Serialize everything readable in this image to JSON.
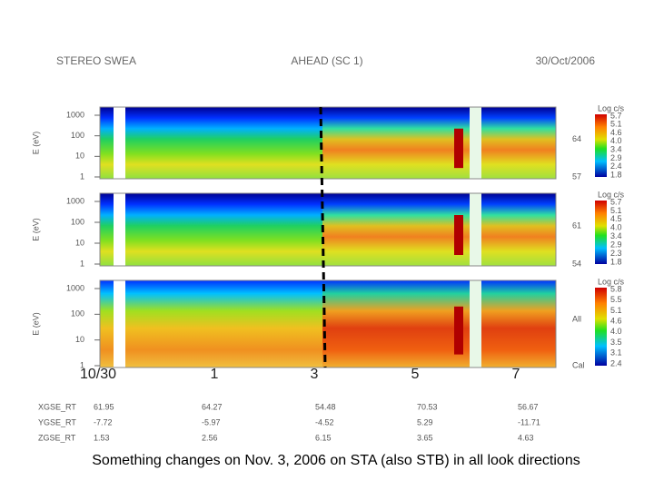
{
  "header": {
    "left": "STEREO SWEA",
    "center": "AHEAD (SC 1)",
    "right": "30/Oct/2006"
  },
  "panels": [
    {
      "y_label": "E (eV)",
      "y_ticks": [
        "1000",
        "100",
        "10",
        "1"
      ],
      "side_labels": [
        "64",
        "57"
      ],
      "colorbar": {
        "title": "Log c/s",
        "ticks": [
          "5.7",
          "5.1",
          "4.6",
          "4.0",
          "3.4",
          "2.9",
          "2.4",
          "1.8"
        ]
      }
    },
    {
      "y_label": "E (eV)",
      "y_ticks": [
        "1000",
        "100",
        "10",
        "1"
      ],
      "side_labels": [
        "61",
        "54"
      ],
      "colorbar": {
        "title": "Log c/s",
        "ticks": [
          "5.7",
          "5.1",
          "4.5",
          "4.0",
          "3.4",
          "2.9",
          "2.3",
          "1.8"
        ]
      }
    },
    {
      "y_label": "E (eV)",
      "y_ticks": [
        "1000",
        "100",
        "10",
        "1"
      ],
      "side_labels": [
        "All",
        "Cal"
      ],
      "colorbar": {
        "title": "Log c/s",
        "ticks": [
          "5.8",
          "5.5",
          "5.1",
          "4.6",
          "4.0",
          "3.5",
          "3.1",
          "2.4"
        ]
      }
    }
  ],
  "x_axis": {
    "labels": [
      "10/30",
      "1",
      "3",
      "5",
      "7"
    ]
  },
  "table": {
    "rows": [
      {
        "label": "XGSE_RT",
        "values": [
          "61.95",
          "64.27",
          "54.48",
          "70.53",
          "56.67"
        ]
      },
      {
        "label": "YGSE_RT",
        "values": [
          "-7.72",
          "-5.97",
          "-4.52",
          "5.29",
          "-11.71"
        ]
      },
      {
        "label": "ZGSE_RT",
        "values": [
          "1.53",
          "2.56",
          "6.15",
          "3.65",
          "4.63"
        ]
      }
    ]
  },
  "caption": "Something changes on Nov. 3, 2006 on STA (also STB) in all look directions"
}
